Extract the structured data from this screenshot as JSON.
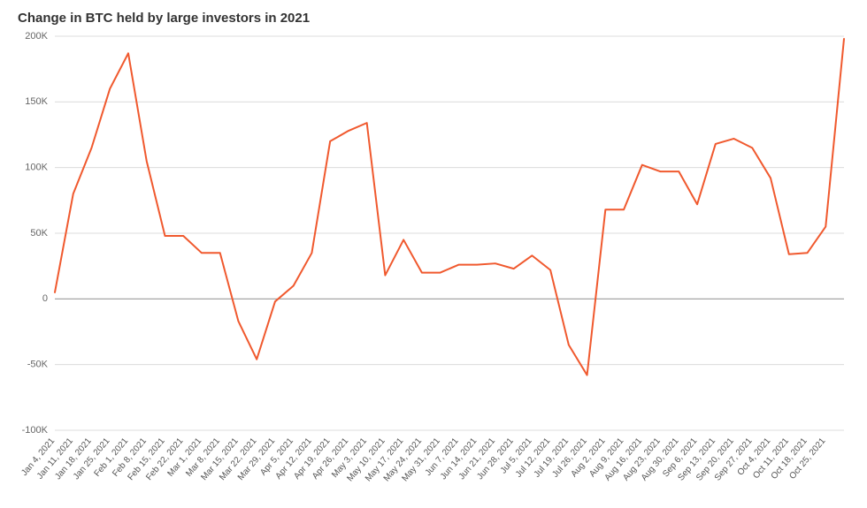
{
  "title": "Change in BTC held by large investors in 2021",
  "chart": {
    "type": "line",
    "background_color": "#ffffff",
    "line_color": "#f0592e",
    "line_width": 2,
    "grid_color": "#dcdcdc",
    "zero_line_color": "#9a9a9a",
    "tick_label_color": "#666666",
    "title_fontsize": 15,
    "title_fontweight": 600,
    "ytick_fontsize": 11,
    "xtick_fontsize": 10,
    "ylim": [
      -100000,
      200000
    ],
    "ytick_step": 50000,
    "ytick_labels": [
      "-100K",
      "-50K",
      "0",
      "50K",
      "100K",
      "150K",
      "200K"
    ],
    "x_labels": [
      "Jan 4, 2021",
      "Jan 11, 2021",
      "Jan 18, 2021",
      "Jan 25, 2021",
      "Feb 1, 2021",
      "Feb 8, 2021",
      "Feb 15, 2021",
      "Feb 22, 2021",
      "Mar 1, 2021",
      "Mar 8, 2021",
      "Mar 15, 2021",
      "Mar 22, 2021",
      "Mar 29, 2021",
      "Apr 5, 2021",
      "Apr 12, 2021",
      "Apr 19, 2021",
      "Apr 26, 2021",
      "May 3, 2021",
      "May 10, 2021",
      "May 17, 2021",
      "May 24, 2021",
      "May 31, 2021",
      "Jun 7, 2021",
      "Jun 14, 2021",
      "Jun 21, 2021",
      "Jun 28, 2021",
      "Jul 5, 2021",
      "Jul 12, 2021",
      "Jul 19, 2021",
      "Jul 26, 2021",
      "Aug 2, 2021",
      "Aug 9, 2021",
      "Aug 16, 2021",
      "Aug 23, 2021",
      "Aug 30, 2021",
      "Sep 6, 2021",
      "Sep 13, 2021",
      "Sep 20, 2021",
      "Sep 27, 2021",
      "Oct 4, 2021",
      "Oct 11, 2021",
      "Oct 18, 2021",
      "Oct 25, 2021"
    ],
    "values": [
      5000,
      80000,
      115000,
      160000,
      187000,
      105000,
      48000,
      48000,
      35000,
      35000,
      -17000,
      -46000,
      -2000,
      10000,
      35000,
      120000,
      128000,
      134000,
      18000,
      45000,
      20000,
      20000,
      26000,
      26000,
      27000,
      23000,
      33000,
      22000,
      -35000,
      -58000,
      68000,
      68000,
      102000,
      97000,
      97000,
      72000,
      118000,
      122000,
      115000,
      92000,
      34000,
      35000,
      55000
    ],
    "extra_trailing_point": 198000,
    "x_label_rotation_deg": -50
  }
}
